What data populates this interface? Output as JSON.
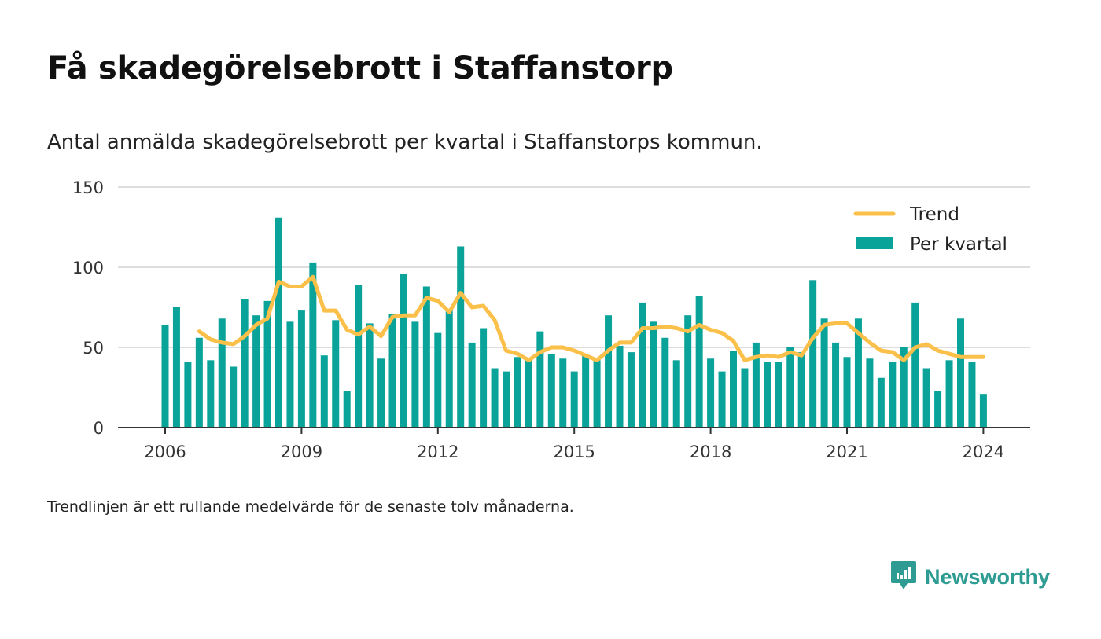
{
  "header": {
    "title": "Få skadegörelsebrott i Staffanstorp",
    "subtitle": "Antal anmälda skadegörelsebrott per kvartal i Staffanstorps kommun."
  },
  "footnote": "Trendlinjen är ett rullande medelvärde för de senaste tolv månaderna.",
  "brand": {
    "name": "Newsworthy",
    "icon": "newsworthy-logo-icon",
    "color": "#2e9c93"
  },
  "colors": {
    "bar": "#0aa39a",
    "trend": "#fbc04a",
    "grid": "#dddddd",
    "axis": "#333333"
  },
  "chart_data": {
    "type": "bar",
    "title": "Få skadegörelsebrott i Staffanstorp",
    "subtitle": "Antal anmälda skadegörelsebrott per kvartal i Staffanstorps kommun.",
    "xlabel": "",
    "ylabel": "",
    "ylim": [
      0,
      150
    ],
    "yticks": [
      "0",
      "50",
      "100",
      "150"
    ],
    "xticks": [
      "2006",
      "2009",
      "2012",
      "2015",
      "2018",
      "2021",
      "2024"
    ],
    "x_start": "2006 Q1",
    "x_end": "2024 Q1",
    "grid": true,
    "legend_position": "top-right",
    "series": [
      {
        "name": "Per kvartal",
        "type": "bar",
        "values": [
          64,
          75,
          41,
          56,
          42,
          68,
          38,
          80,
          70,
          79,
          131,
          66,
          73,
          103,
          45,
          67,
          23,
          89,
          65,
          43,
          71,
          96,
          66,
          88,
          59,
          73,
          113,
          53,
          62,
          37,
          35,
          44,
          43,
          60,
          46,
          43,
          35,
          45,
          42,
          70,
          51,
          47,
          78,
          66,
          56,
          42,
          70,
          82,
          43,
          35,
          48,
          37,
          53,
          41,
          41,
          50,
          47,
          92,
          68,
          53,
          44,
          68,
          43,
          31,
          41,
          50,
          78,
          37,
          23,
          42,
          68,
          41,
          21
        ]
      },
      {
        "name": "Trend",
        "type": "line",
        "values": [
          null,
          null,
          null,
          60,
          55,
          53,
          52,
          57,
          64,
          68,
          91,
          88,
          88,
          94,
          73,
          73,
          61,
          58,
          63,
          57,
          69,
          70,
          70,
          81,
          79,
          72,
          84,
          75,
          76,
          67,
          48,
          46,
          42,
          47,
          50,
          50,
          48,
          45,
          42,
          48,
          53,
          53,
          62,
          62,
          63,
          62,
          60,
          64,
          61,
          59,
          54,
          42,
          44,
          45,
          44,
          47,
          45,
          56,
          64,
          65,
          65,
          59,
          53,
          48,
          47,
          42,
          50,
          52,
          48,
          46,
          44,
          44,
          44
        ]
      }
    ]
  }
}
